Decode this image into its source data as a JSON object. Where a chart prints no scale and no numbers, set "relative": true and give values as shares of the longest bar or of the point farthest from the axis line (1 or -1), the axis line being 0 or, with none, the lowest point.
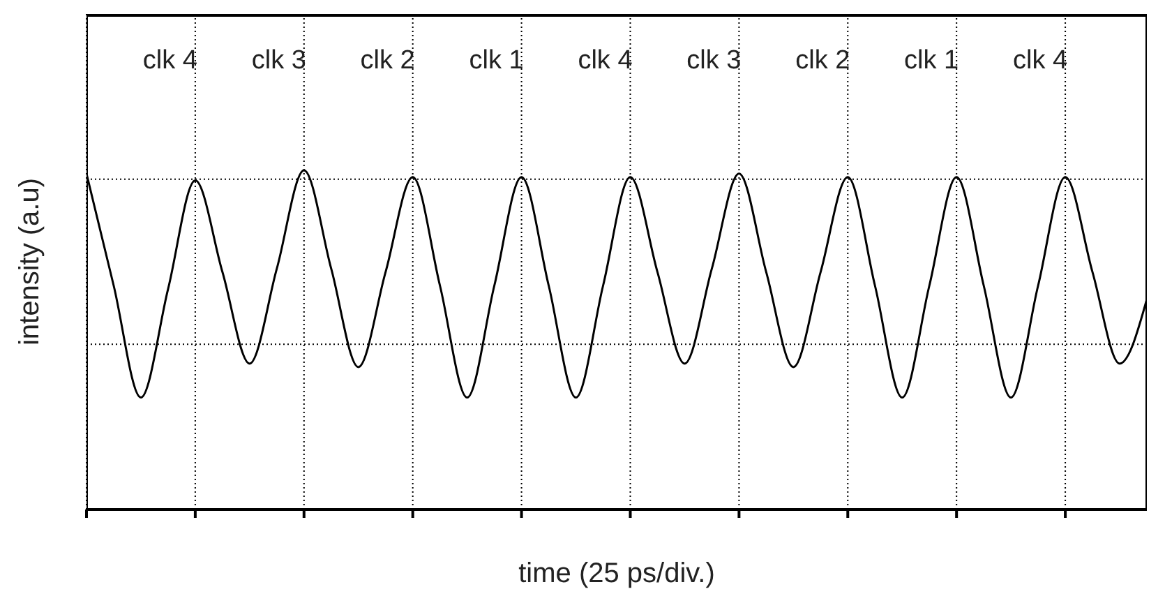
{
  "chart_data": {
    "type": "line",
    "relative": true,
    "xlabel": "time (25 ps/div.)",
    "ylabel": "intensity (a.u)",
    "annotations": [
      "clk 4",
      "clk 3",
      "clk 2",
      "clk 1",
      "clk 4",
      "clk 3",
      "clk 2",
      "clk 1",
      "clk 4"
    ],
    "categories": [
      null,
      null,
      null,
      null,
      null,
      null,
      null,
      null,
      null,
      null,
      null,
      null,
      null,
      null,
      null,
      null,
      null,
      null,
      null,
      null,
      null,
      null,
      null,
      null,
      null,
      null,
      null,
      null,
      null,
      null,
      null,
      null,
      null,
      null,
      null,
      null,
      null,
      null,
      null,
      null
    ],
    "series": [
      {
        "color": "#000000",
        "values": [
          0.99,
          0.66,
          0.33,
          0.65,
          0.97,
          0.7,
          0.43,
          0.71,
          1,
          0.71,
          0.42,
          0.7,
          0.98,
          0.66,
          0.33,
          0.66,
          0.98,
          0.66,
          0.33,
          0.66,
          0.98,
          0.7,
          0.43,
          0.71,
          0.99,
          0.7,
          0.42,
          0.7,
          0.98,
          0.66,
          0.33,
          0.66,
          0.98,
          0.66,
          0.33,
          0.66,
          0.98,
          0.7,
          0.43,
          0.62
        ]
      }
    ],
    "grid": true,
    "legend": false,
    "marker": "none",
    "line_style": "solid"
  }
}
